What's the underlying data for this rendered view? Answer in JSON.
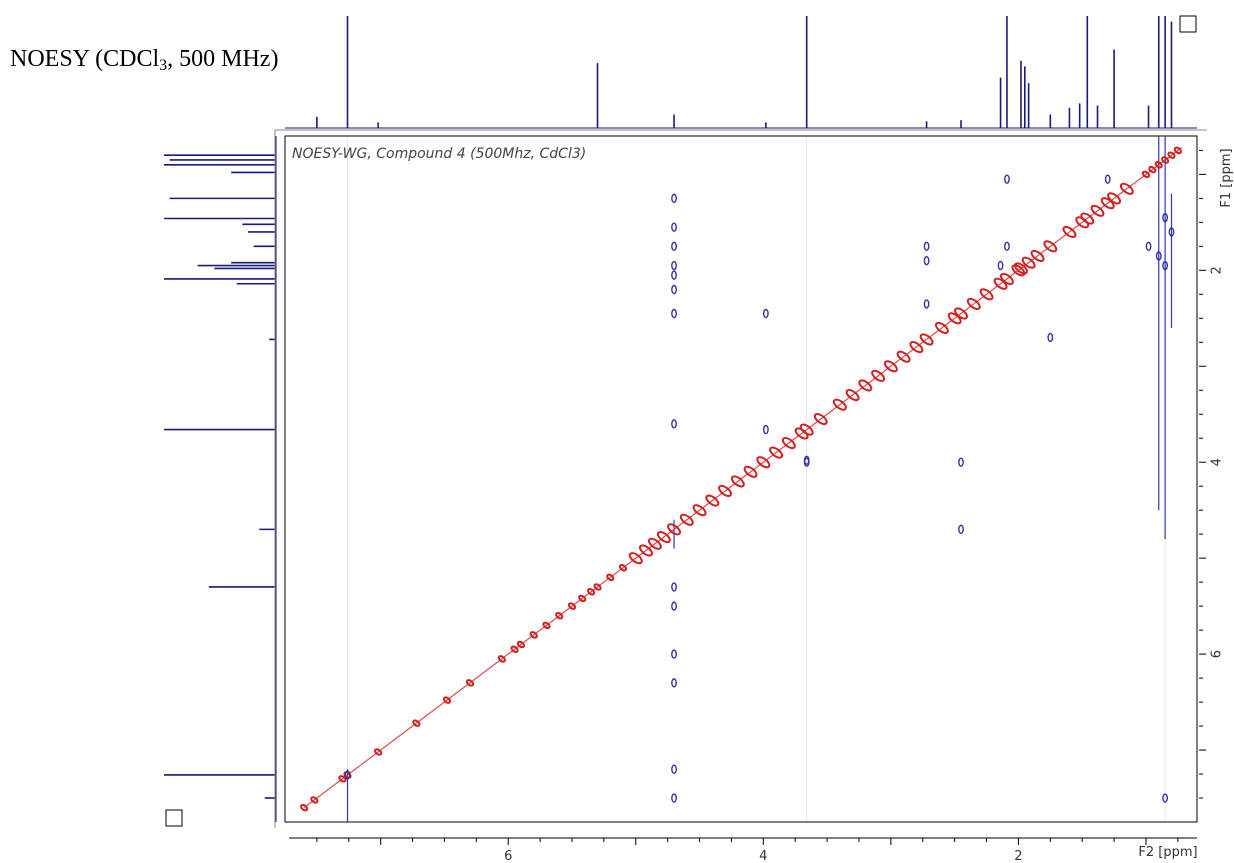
{
  "figure": {
    "title_main": "NOESY (CDCl",
    "title_sub": "3",
    "title_tail": ", 500 MHz)"
  },
  "colors": {
    "diagonal": "#d41f1f",
    "cross_peak": "#3333aa",
    "projection": "#1a1a7a",
    "frame": "#000000"
  },
  "chart_data": {
    "type": "scatter",
    "title": "NOESY-WG, Compound 4  (500Mhz, CdCl3)",
    "x_axis": {
      "label": "F2 [ppm]",
      "range": [
        7.75,
        0.6
      ],
      "ticks": [
        6,
        4,
        2
      ],
      "reversed": true
    },
    "y_axis": {
      "label": "F1 [ppm]",
      "range": [
        0.6,
        7.75
      ],
      "ticks": [
        2,
        4,
        6
      ],
      "reversed": true,
      "side": "right"
    },
    "top_projection_peaks": [
      {
        "ppm": 7.26,
        "height": 1.0
      },
      {
        "ppm": 7.02,
        "height": 0.05
      },
      {
        "ppm": 7.5,
        "height": 0.1
      },
      {
        "ppm": 5.3,
        "height": 0.58
      },
      {
        "ppm": 4.7,
        "height": 0.12
      },
      {
        "ppm": 3.98,
        "height": 0.05
      },
      {
        "ppm": 3.66,
        "height": 1.0
      },
      {
        "ppm": 2.72,
        "height": 0.06
      },
      {
        "ppm": 2.45,
        "height": 0.07
      },
      {
        "ppm": 2.14,
        "height": 0.45
      },
      {
        "ppm": 2.09,
        "height": 1.0
      },
      {
        "ppm": 1.98,
        "height": 0.6
      },
      {
        "ppm": 1.95,
        "height": 0.55
      },
      {
        "ppm": 1.92,
        "height": 0.4
      },
      {
        "ppm": 1.75,
        "height": 0.12
      },
      {
        "ppm": 1.6,
        "height": 0.18
      },
      {
        "ppm": 1.52,
        "height": 0.22
      },
      {
        "ppm": 1.46,
        "height": 1.0
      },
      {
        "ppm": 1.38,
        "height": 0.2
      },
      {
        "ppm": 1.25,
        "height": 0.7
      },
      {
        "ppm": 0.98,
        "height": 0.2
      },
      {
        "ppm": 0.9,
        "height": 1.0
      },
      {
        "ppm": 0.85,
        "height": 1.0
      },
      {
        "ppm": 0.8,
        "height": 0.95
      }
    ],
    "left_projection_peaks": [
      {
        "ppm": 0.8,
        "height": 1.0
      },
      {
        "ppm": 0.85,
        "height": 0.95
      },
      {
        "ppm": 0.9,
        "height": 1.0
      },
      {
        "ppm": 0.98,
        "height": 0.4
      },
      {
        "ppm": 1.25,
        "height": 0.95
      },
      {
        "ppm": 1.46,
        "height": 1.0
      },
      {
        "ppm": 1.52,
        "height": 0.3
      },
      {
        "ppm": 1.6,
        "height": 0.25
      },
      {
        "ppm": 1.75,
        "height": 0.2
      },
      {
        "ppm": 1.92,
        "height": 0.4
      },
      {
        "ppm": 1.95,
        "height": 0.7
      },
      {
        "ppm": 1.98,
        "height": 0.55
      },
      {
        "ppm": 2.09,
        "height": 1.0
      },
      {
        "ppm": 2.14,
        "height": 0.35
      },
      {
        "ppm": 2.72,
        "height": 0.06
      },
      {
        "ppm": 3.66,
        "height": 1.0
      },
      {
        "ppm": 4.7,
        "height": 0.15
      },
      {
        "ppm": 5.3,
        "height": 0.6
      },
      {
        "ppm": 7.26,
        "height": 1.0
      },
      {
        "ppm": 7.5,
        "height": 0.1
      }
    ],
    "diagonal_peaks": [
      7.6,
      7.52,
      7.3,
      7.26,
      7.02,
      6.72,
      6.48,
      6.3,
      6.05,
      5.95,
      5.9,
      5.8,
      5.7,
      5.6,
      5.5,
      5.42,
      5.35,
      5.3,
      5.2,
      5.1,
      5.0,
      4.92,
      4.85,
      4.78,
      4.7,
      4.6,
      4.5,
      4.4,
      4.3,
      4.2,
      4.1,
      4.0,
      3.9,
      3.8,
      3.7,
      3.66,
      3.55,
      3.4,
      3.3,
      3.2,
      3.1,
      3.0,
      2.9,
      2.8,
      2.72,
      2.6,
      2.5,
      2.45,
      2.35,
      2.25,
      2.14,
      2.09,
      2.0,
      1.98,
      1.92,
      1.85,
      1.75,
      1.6,
      1.5,
      1.46,
      1.38,
      1.3,
      1.25,
      1.15,
      1.0,
      0.95,
      0.9,
      0.85,
      0.8,
      0.75
    ],
    "cross_peaks": [
      {
        "x": 4.7,
        "y": 1.25
      },
      {
        "x": 4.7,
        "y": 1.55
      },
      {
        "x": 4.7,
        "y": 1.75
      },
      {
        "x": 4.7,
        "y": 1.95
      },
      {
        "x": 4.7,
        "y": 2.05
      },
      {
        "x": 4.7,
        "y": 2.2
      },
      {
        "x": 4.7,
        "y": 2.45
      },
      {
        "x": 4.7,
        "y": 3.6
      },
      {
        "x": 4.7,
        "y": 5.3
      },
      {
        "x": 4.7,
        "y": 5.5
      },
      {
        "x": 4.7,
        "y": 6.0
      },
      {
        "x": 4.7,
        "y": 6.3
      },
      {
        "x": 4.7,
        "y": 7.2
      },
      {
        "x": 4.7,
        "y": 7.5
      },
      {
        "x": 3.98,
        "y": 2.45
      },
      {
        "x": 3.98,
        "y": 3.66
      },
      {
        "x": 3.66,
        "y": 3.98
      },
      {
        "x": 3.66,
        "y": 4.0
      },
      {
        "x": 2.72,
        "y": 1.75
      },
      {
        "x": 2.72,
        "y": 1.9
      },
      {
        "x": 2.72,
        "y": 2.35
      },
      {
        "x": 2.14,
        "y": 1.95
      },
      {
        "x": 2.09,
        "y": 1.05
      },
      {
        "x": 2.09,
        "y": 1.75
      },
      {
        "x": 2.45,
        "y": 4.0
      },
      {
        "x": 2.45,
        "y": 4.7
      },
      {
        "x": 1.75,
        "y": 2.7
      },
      {
        "x": 1.3,
        "y": 1.05
      },
      {
        "x": 0.98,
        "y": 1.75
      },
      {
        "x": 0.9,
        "y": 1.85
      },
      {
        "x": 0.85,
        "y": 1.45
      },
      {
        "x": 0.85,
        "y": 1.95
      },
      {
        "x": 0.85,
        "y": 7.5
      },
      {
        "x": 7.26,
        "y": 7.26
      },
      {
        "x": 0.8,
        "y": 1.6
      }
    ],
    "cross_streaks": [
      {
        "x": 0.9,
        "y_from": 0.6,
        "y_to": 4.5
      },
      {
        "x": 0.85,
        "y_from": 0.6,
        "y_to": 4.8
      },
      {
        "x": 0.8,
        "y_from": 1.2,
        "y_to": 2.6
      },
      {
        "x": 7.26,
        "y_from": 7.2,
        "y_to": 7.75
      },
      {
        "x": 4.7,
        "y_from": 4.6,
        "y_to": 4.9
      }
    ],
    "legend": "none",
    "grid": false
  }
}
